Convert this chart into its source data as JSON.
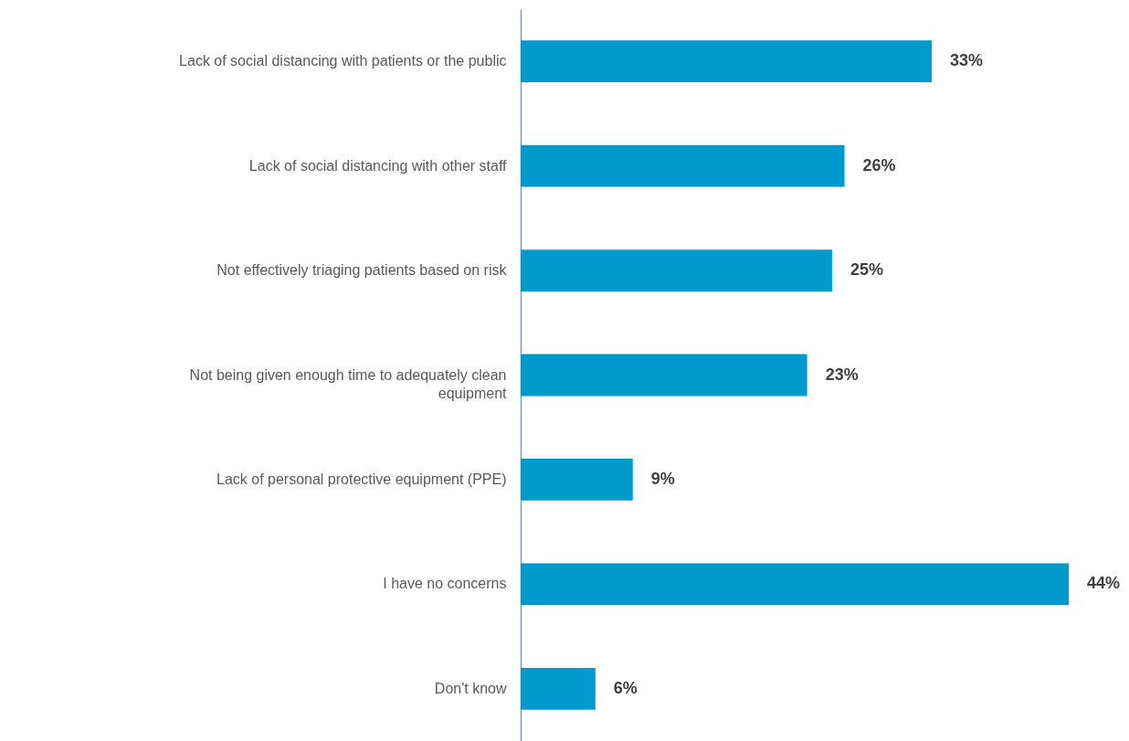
{
  "chart_data": {
    "type": "bar",
    "orientation": "horizontal",
    "categories": [
      "Lack of social distancing with patients or the public",
      "Lack of social distancing with other staff",
      "Not effectively triaging patients based on risk",
      "Not being given enough time to adequately clean equipment",
      "Lack of personal protective equipment (PPE)",
      "I have no concerns",
      "Don't know"
    ],
    "values": [
      33,
      26,
      25,
      23,
      9,
      44,
      6
    ],
    "value_labels": [
      "33%",
      "26%",
      "25%",
      "23%",
      "9%",
      "44%",
      "6%"
    ],
    "color": "#0099cc"
  }
}
